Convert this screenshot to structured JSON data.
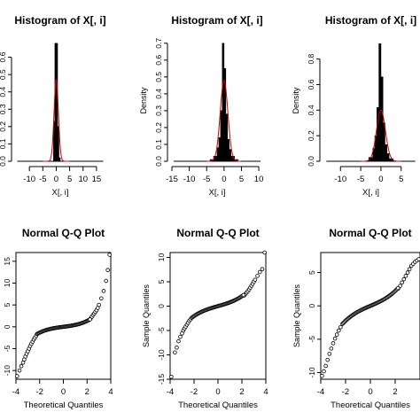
{
  "chart_data": [
    {
      "type": "bar",
      "title": "Histogram of X[, i]",
      "xlabel": "X[, i]",
      "ylabel": "",
      "xlim": [
        -15,
        18
      ],
      "ylim": [
        0,
        0.7
      ],
      "xticks": [
        -10,
        -5,
        0,
        5,
        10,
        15
      ],
      "xtick_labels": [
        "-10",
        "-5",
        "0",
        "5",
        "10",
        "15"
      ],
      "yticks": [
        0.0,
        0.1,
        0.2,
        0.3,
        0.4,
        0.5,
        0.6
      ],
      "ytick_labels": [
        "0.0",
        "0.1",
        "0.2",
        "0.3",
        "0.4",
        "0.5",
        "0.6"
      ],
      "bins": [
        {
          "x0": -1.0,
          "x1": -0.5,
          "y": 0.23
        },
        {
          "x0": -0.5,
          "x1": 0.0,
          "y": 0.68
        },
        {
          "x0": 0.0,
          "x1": 0.5,
          "y": 0.68
        },
        {
          "x0": 0.5,
          "x1": 1.0,
          "y": 0.2
        },
        {
          "x0": 1.0,
          "x1": 1.5,
          "y": 0.02
        }
      ],
      "density_peak": 0.47,
      "density_scale": 0.8
    },
    {
      "type": "bar",
      "title": "Histogram of X[, i]",
      "xlabel": "X[, i]",
      "ylabel": "Density",
      "xlim": [
        -15,
        11
      ],
      "ylim": [
        0,
        0.72
      ],
      "xticks": [
        -15,
        -10,
        -5,
        0,
        5,
        10
      ],
      "xtick_labels": [
        "-15",
        "-10",
        "-5",
        "0",
        "5",
        "10"
      ],
      "yticks": [
        0.0,
        0.1,
        0.2,
        0.3,
        0.4,
        0.5,
        0.6,
        0.7
      ],
      "ytick_labels": [
        "0.0",
        "0.1",
        "0.2",
        "0.3",
        "0.4",
        "0.5",
        "0.6",
        "0.7"
      ],
      "bins": [
        {
          "x0": -4.0,
          "x1": -3.0,
          "y": 0.01
        },
        {
          "x0": -3.0,
          "x1": -2.0,
          "y": 0.03
        },
        {
          "x0": -2.0,
          "x1": -1.5,
          "y": 0.08
        },
        {
          "x0": -1.5,
          "x1": -1.0,
          "y": 0.14
        },
        {
          "x0": -1.0,
          "x1": -0.5,
          "y": 0.3
        },
        {
          "x0": -0.5,
          "x1": 0.0,
          "y": 0.7
        },
        {
          "x0": 0.0,
          "x1": 0.5,
          "y": 0.55
        },
        {
          "x0": 0.5,
          "x1": 1.0,
          "y": 0.28
        },
        {
          "x0": 1.0,
          "x1": 1.5,
          "y": 0.13
        },
        {
          "x0": 1.5,
          "x1": 2.0,
          "y": 0.07
        },
        {
          "x0": 2.0,
          "x1": 3.0,
          "y": 0.03
        },
        {
          "x0": 3.0,
          "x1": 4.0,
          "y": 0.01
        }
      ],
      "density_peak": 0.48,
      "density_scale": 1.1
    },
    {
      "type": "bar",
      "title": "Histogram of X[, i]",
      "xlabel": "X[, i]",
      "ylabel": "Density",
      "xlim": [
        -14,
        9
      ],
      "ylim": [
        0,
        0.95
      ],
      "xticks": [
        -10,
        -5,
        0,
        5
      ],
      "xtick_labels": [
        "-10",
        "-5",
        "0",
        "5"
      ],
      "yticks": [
        0.0,
        0.2,
        0.4,
        0.6,
        0.8
      ],
      "ytick_labels": [
        "0.0",
        "0.2",
        "0.4",
        "0.6",
        "0.8"
      ],
      "bins": [
        {
          "x0": -3.0,
          "x1": -2.0,
          "y": 0.03
        },
        {
          "x0": -2.0,
          "x1": -1.5,
          "y": 0.1
        },
        {
          "x0": -1.5,
          "x1": -1.0,
          "y": 0.2
        },
        {
          "x0": -1.0,
          "x1": -0.5,
          "y": 0.42
        },
        {
          "x0": -0.5,
          "x1": 0.0,
          "y": 0.92
        },
        {
          "x0": 0.0,
          "x1": 0.5,
          "y": 0.66
        },
        {
          "x0": 0.5,
          "x1": 1.0,
          "y": 0.3
        },
        {
          "x0": 1.0,
          "x1": 1.5,
          "y": 0.13
        },
        {
          "x0": 1.5,
          "x1": 2.0,
          "y": 0.06
        },
        {
          "x0": 2.0,
          "x1": 3.0,
          "y": 0.02
        }
      ],
      "density_peak": 0.4,
      "density_scale": 1.1
    },
    {
      "type": "scatter",
      "title": "Normal Q-Q Plot",
      "xlabel": "Theoretical Quantiles",
      "ylabel": "",
      "xlim": [
        -4,
        4
      ],
      "ylim": [
        -12,
        17
      ],
      "xticks": [
        -4,
        -2,
        0,
        2,
        4
      ],
      "xtick_labels": [
        "-4",
        "-2",
        "0",
        "2",
        "4"
      ],
      "yticks": [
        -10,
        -5,
        0,
        5,
        10,
        15
      ],
      "ytick_labels": [
        "-10",
        "-5",
        "0",
        "5",
        "10",
        "15"
      ],
      "qq_center_slope": 0.35,
      "qq_tail_points": [
        [
          -3.9,
          -11.3
        ],
        [
          -3.7,
          -10.0
        ],
        [
          -3.55,
          -9.0
        ],
        [
          -3.4,
          -8.2
        ],
        [
          -3.3,
          -7.5
        ],
        [
          -3.2,
          -6.8
        ],
        [
          -3.1,
          -6.2
        ],
        [
          -3.0,
          -5.6
        ],
        [
          -2.9,
          -5.0
        ],
        [
          -2.8,
          -4.4
        ],
        [
          -2.7,
          -3.9
        ],
        [
          -2.6,
          -3.4
        ],
        [
          -2.5,
          -2.9
        ],
        [
          -2.4,
          -2.5
        ],
        [
          -2.3,
          -2.1
        ],
        [
          2.3,
          1.9
        ],
        [
          2.4,
          2.3
        ],
        [
          2.5,
          2.7
        ],
        [
          2.6,
          3.0
        ],
        [
          2.7,
          3.4
        ],
        [
          2.8,
          3.8
        ],
        [
          2.9,
          4.3
        ],
        [
          3.0,
          5.0
        ],
        [
          3.2,
          6.5
        ],
        [
          3.4,
          8.2
        ],
        [
          3.6,
          10.5
        ],
        [
          3.75,
          13.0
        ],
        [
          3.9,
          16.5
        ]
      ]
    },
    {
      "type": "scatter",
      "title": "Normal Q-Q Plot",
      "xlabel": "Theoretical Quantiles",
      "ylabel": "Sample Quantiles",
      "xlim": [
        -4,
        4
      ],
      "ylim": [
        -15,
        11
      ],
      "xticks": [
        -4,
        -2,
        0,
        2,
        4
      ],
      "xtick_labels": [
        "-4",
        "-2",
        "0",
        "2",
        "4"
      ],
      "yticks": [
        -15,
        -10,
        -5,
        0,
        5,
        10
      ],
      "ytick_labels": [
        "-15",
        "-10",
        "-5",
        "0",
        "5",
        "10"
      ],
      "qq_center_slope": 0.7,
      "qq_tail_points": [
        [
          -3.9,
          -14.5
        ],
        [
          -3.6,
          -9.5
        ],
        [
          -3.45,
          -8.5
        ],
        [
          -3.3,
          -7.2
        ],
        [
          -3.15,
          -6.3
        ],
        [
          -3.0,
          -5.6
        ],
        [
          -2.9,
          -5.0
        ],
        [
          -2.8,
          -4.6
        ],
        [
          -2.7,
          -4.2
        ],
        [
          -2.6,
          -3.8
        ],
        [
          -2.5,
          -3.4
        ],
        [
          -2.4,
          -3.0
        ],
        [
          -2.3,
          -2.7
        ],
        [
          -2.2,
          -2.4
        ],
        [
          2.2,
          2.2
        ],
        [
          2.3,
          2.5
        ],
        [
          2.4,
          2.8
        ],
        [
          2.5,
          3.1
        ],
        [
          2.6,
          3.4
        ],
        [
          2.7,
          3.8
        ],
        [
          2.8,
          4.2
        ],
        [
          2.9,
          4.6
        ],
        [
          3.0,
          5.0
        ],
        [
          3.1,
          5.4
        ],
        [
          3.3,
          6.2
        ],
        [
          3.5,
          7.0
        ],
        [
          3.7,
          7.6
        ],
        [
          3.9,
          11.0
        ]
      ]
    },
    {
      "type": "scatter",
      "title": "Normal Q-Q Plot",
      "xlabel": "Theoretical Quantiles",
      "ylabel": "Sample Quantiles",
      "xlim": [
        -4,
        4
      ],
      "ylim": [
        -11,
        8
      ],
      "xticks": [
        -4,
        -2,
        0,
        2
      ],
      "xtick_labels": [
        "-4",
        "-2",
        "0",
        "2"
      ],
      "yticks": [
        -10,
        -5,
        0,
        5
      ],
      "ytick_labels": [
        "-10",
        "-5",
        "0",
        "5"
      ],
      "qq_center_slope": 0.8,
      "qq_tail_points": [
        [
          -3.9,
          -10.5
        ],
        [
          -3.75,
          -9.8
        ],
        [
          -3.6,
          -9.0
        ],
        [
          -3.45,
          -8.1
        ],
        [
          -3.3,
          -7.2
        ],
        [
          -3.15,
          -6.4
        ],
        [
          -3.0,
          -5.6
        ],
        [
          -2.85,
          -4.9
        ],
        [
          -2.7,
          -4.3
        ],
        [
          -2.55,
          -3.7
        ],
        [
          -2.4,
          -3.2
        ],
        [
          -2.25,
          -2.7
        ],
        [
          2.25,
          2.6
        ],
        [
          2.4,
          3.0
        ],
        [
          2.55,
          3.5
        ],
        [
          2.7,
          4.0
        ],
        [
          2.85,
          4.5
        ],
        [
          3.0,
          5.0
        ],
        [
          3.15,
          5.5
        ],
        [
          3.3,
          6.0
        ],
        [
          3.45,
          6.3
        ],
        [
          3.6,
          6.6
        ],
        [
          3.75,
          6.8
        ],
        [
          3.9,
          7.0
        ]
      ]
    }
  ],
  "colors": {
    "bar_fill": "#000000",
    "density_line": "#cc0000",
    "points": "#000000"
  }
}
